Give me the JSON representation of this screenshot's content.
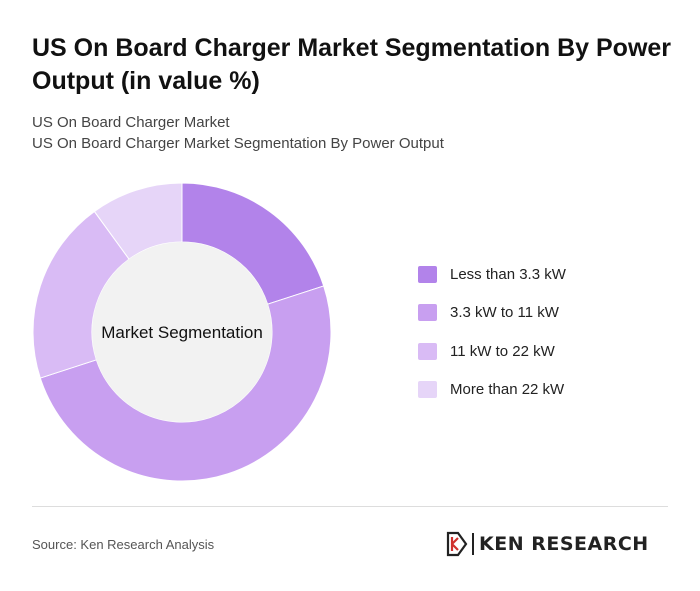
{
  "header": {
    "title": "US On Board Charger Market Segmentation By Power Output (in value %)",
    "subtitle_line1": "US On Board Charger Market",
    "subtitle_line2": "US On Board Charger Market Segmentation By Power Output"
  },
  "chart_data": {
    "type": "pie",
    "variant": "donut",
    "center_label": "Market Segmentation",
    "legend_position": "right",
    "categories": [
      "Less than 3.3 kW",
      "3.3 kW to 11 kW",
      "11 kW to 22 kW",
      "More than 22 kW"
    ],
    "values": [
      20,
      50,
      20,
      10
    ],
    "colors": [
      "#b283ea",
      "#c89ff0",
      "#d9bbf5",
      "#e6d5f8"
    ]
  },
  "footer": {
    "source": "Source: Ken Research Analysis",
    "logo_text": "KEN RESEARCH"
  }
}
